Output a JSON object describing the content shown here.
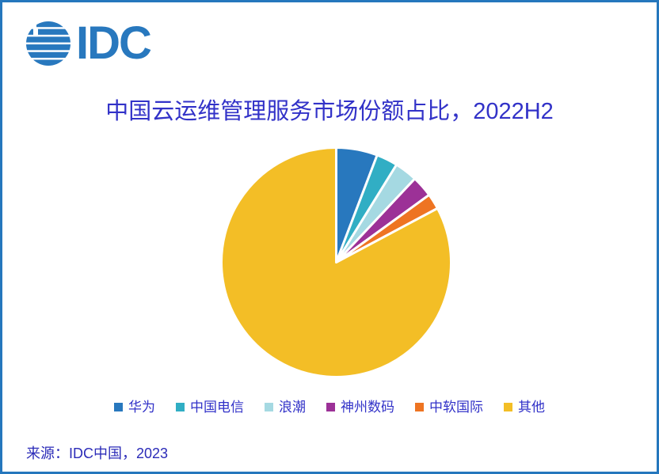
{
  "logo": {
    "text": "IDC",
    "color": "#2878BE"
  },
  "title": {
    "text": "中国云运维管理服务市场份额占比，2022H2",
    "color": "#3232C8"
  },
  "chart_data": {
    "type": "pie",
    "title": "中国云运维管理服务市场份额占比，2022H2",
    "unit": "percent (estimated from slice angles; no data labels shown)",
    "start_angle_deg": -90,
    "direction": "clockwise",
    "legend_position": "bottom",
    "data_labels_shown": false,
    "separator_color": "#FFFFFF",
    "slices": [
      {
        "label": "华为",
        "value": 5.8,
        "color": "#2878BE"
      },
      {
        "label": "中国电信",
        "value": 3.0,
        "color": "#31AEC4"
      },
      {
        "label": "浪潮",
        "value": 3.2,
        "color": "#A5D9E2"
      },
      {
        "label": "神州数码",
        "value": 3.0,
        "color": "#9C3197"
      },
      {
        "label": "中软国际",
        "value": 2.2,
        "color": "#EE7422"
      },
      {
        "label": "其他",
        "value": 82.8,
        "color": "#F3BE26"
      }
    ]
  },
  "source": {
    "text": "来源：IDC中国，2023"
  }
}
